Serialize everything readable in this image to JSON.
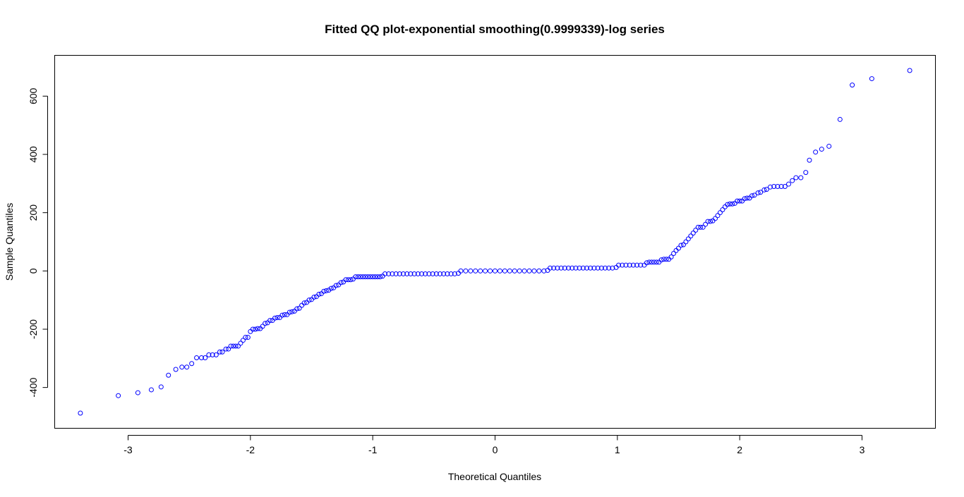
{
  "chart_data": {
    "type": "scatter",
    "title": "Fitted QQ plot-exponential smoothing(0.9999339)-log series",
    "xlabel": "Theoretical Quantiles",
    "ylabel": "Sample Quantiles",
    "xlim": [
      -3.6,
      3.6
    ],
    "ylim": [
      -540,
      740
    ],
    "x_ticks": [
      -3,
      -2,
      -1,
      0,
      1,
      2,
      3
    ],
    "x_tick_labels": [
      "-3",
      "-2",
      "-1",
      "0",
      "1",
      "2",
      "3"
    ],
    "y_ticks": [
      -400,
      -200,
      0,
      200,
      400,
      600
    ],
    "y_tick_labels": [
      "-400",
      "-200",
      "0",
      "200",
      "400",
      "600"
    ],
    "grid": false,
    "point_color": "#0000ff",
    "marker": "open-circle",
    "series": [
      {
        "points": [
          [
            -3.39,
            -488
          ],
          [
            -3.08,
            -428
          ],
          [
            -2.92,
            -418
          ],
          [
            -2.81,
            -408
          ],
          [
            -2.73,
            -398
          ],
          [
            -2.67,
            -358
          ],
          [
            -2.61,
            -338
          ],
          [
            -2.56,
            -330
          ],
          [
            -2.52,
            -330
          ],
          [
            -2.48,
            -318
          ],
          [
            -2.44,
            -298
          ],
          [
            -2.4,
            -298
          ],
          [
            -2.37,
            -298
          ],
          [
            -2.34,
            -288
          ],
          [
            -2.31,
            -288
          ],
          [
            -2.28,
            -288
          ],
          [
            -2.25,
            -278
          ],
          [
            -2.23,
            -278
          ],
          [
            -2.2,
            -268
          ],
          [
            -2.18,
            -268
          ],
          [
            -2.16,
            -258
          ],
          [
            -2.14,
            -258
          ],
          [
            -2.12,
            -258
          ],
          [
            -2.1,
            -258
          ],
          [
            -2.08,
            -248
          ],
          [
            -2.06,
            -238
          ],
          [
            -2.04,
            -228
          ],
          [
            -2.02,
            -228
          ],
          [
            -2.0,
            -208
          ],
          [
            -1.98,
            -200
          ],
          [
            -1.96,
            -200
          ],
          [
            -1.94,
            -198
          ],
          [
            -1.92,
            -198
          ],
          [
            -1.9,
            -190
          ],
          [
            -1.88,
            -180
          ],
          [
            -1.86,
            -178
          ],
          [
            -1.84,
            -170
          ],
          [
            -1.82,
            -170
          ],
          [
            -1.8,
            -162
          ],
          [
            -1.78,
            -160
          ],
          [
            -1.76,
            -160
          ],
          [
            -1.74,
            -152
          ],
          [
            -1.72,
            -150
          ],
          [
            -1.7,
            -150
          ],
          [
            -1.68,
            -142
          ],
          [
            -1.66,
            -140
          ],
          [
            -1.64,
            -138
          ],
          [
            -1.62,
            -130
          ],
          [
            -1.6,
            -128
          ],
          [
            -1.58,
            -118
          ],
          [
            -1.56,
            -110
          ],
          [
            -1.54,
            -108
          ],
          [
            -1.52,
            -100
          ],
          [
            -1.5,
            -98
          ],
          [
            -1.48,
            -90
          ],
          [
            -1.46,
            -88
          ],
          [
            -1.44,
            -80
          ],
          [
            -1.42,
            -78
          ],
          [
            -1.4,
            -70
          ],
          [
            -1.38,
            -68
          ],
          [
            -1.36,
            -66
          ],
          [
            -1.34,
            -60
          ],
          [
            -1.32,
            -58
          ],
          [
            -1.3,
            -50
          ],
          [
            -1.28,
            -48
          ],
          [
            -1.26,
            -40
          ],
          [
            -1.24,
            -38
          ],
          [
            -1.22,
            -30
          ],
          [
            -1.2,
            -30
          ],
          [
            -1.18,
            -30
          ],
          [
            -1.16,
            -28
          ],
          [
            -1.14,
            -20
          ],
          [
            -1.12,
            -20
          ],
          [
            -1.1,
            -20
          ],
          [
            -1.08,
            -20
          ],
          [
            -1.06,
            -20
          ],
          [
            -1.04,
            -20
          ],
          [
            -1.02,
            -20
          ],
          [
            -1.0,
            -20
          ],
          [
            -0.98,
            -20
          ],
          [
            -0.96,
            -20
          ],
          [
            -0.94,
            -20
          ],
          [
            -0.92,
            -18
          ],
          [
            -0.9,
            -10
          ],
          [
            -0.87,
            -10
          ],
          [
            -0.84,
            -10
          ],
          [
            -0.81,
            -10
          ],
          [
            -0.78,
            -10
          ],
          [
            -0.75,
            -10
          ],
          [
            -0.72,
            -10
          ],
          [
            -0.69,
            -10
          ],
          [
            -0.66,
            -10
          ],
          [
            -0.63,
            -10
          ],
          [
            -0.6,
            -10
          ],
          [
            -0.57,
            -10
          ],
          [
            -0.54,
            -10
          ],
          [
            -0.51,
            -10
          ],
          [
            -0.48,
            -10
          ],
          [
            -0.45,
            -10
          ],
          [
            -0.42,
            -10
          ],
          [
            -0.39,
            -10
          ],
          [
            -0.36,
            -10
          ],
          [
            -0.33,
            -10
          ],
          [
            -0.3,
            -8
          ],
          [
            -0.28,
            0
          ],
          [
            -0.24,
            0
          ],
          [
            -0.2,
            0
          ],
          [
            -0.16,
            0
          ],
          [
            -0.12,
            0
          ],
          [
            -0.08,
            0
          ],
          [
            -0.04,
            0
          ],
          [
            0.0,
            0
          ],
          [
            0.04,
            0
          ],
          [
            0.08,
            0
          ],
          [
            0.12,
            0
          ],
          [
            0.16,
            0
          ],
          [
            0.2,
            0
          ],
          [
            0.24,
            0
          ],
          [
            0.28,
            0
          ],
          [
            0.32,
            0
          ],
          [
            0.36,
            0
          ],
          [
            0.4,
            0
          ],
          [
            0.43,
            2
          ],
          [
            0.45,
            10
          ],
          [
            0.48,
            10
          ],
          [
            0.51,
            10
          ],
          [
            0.54,
            10
          ],
          [
            0.57,
            10
          ],
          [
            0.6,
            10
          ],
          [
            0.63,
            10
          ],
          [
            0.66,
            10
          ],
          [
            0.69,
            10
          ],
          [
            0.72,
            10
          ],
          [
            0.75,
            10
          ],
          [
            0.78,
            10
          ],
          [
            0.81,
            10
          ],
          [
            0.84,
            10
          ],
          [
            0.87,
            10
          ],
          [
            0.9,
            10
          ],
          [
            0.93,
            10
          ],
          [
            0.96,
            10
          ],
          [
            0.99,
            12
          ],
          [
            1.01,
            20
          ],
          [
            1.04,
            20
          ],
          [
            1.07,
            20
          ],
          [
            1.1,
            20
          ],
          [
            1.13,
            20
          ],
          [
            1.16,
            20
          ],
          [
            1.19,
            20
          ],
          [
            1.22,
            20
          ],
          [
            1.24,
            28
          ],
          [
            1.26,
            30
          ],
          [
            1.28,
            30
          ],
          [
            1.3,
            30
          ],
          [
            1.32,
            30
          ],
          [
            1.34,
            30
          ],
          [
            1.36,
            38
          ],
          [
            1.38,
            40
          ],
          [
            1.4,
            40
          ],
          [
            1.42,
            40
          ],
          [
            1.44,
            48
          ],
          [
            1.46,
            60
          ],
          [
            1.48,
            70
          ],
          [
            1.5,
            78
          ],
          [
            1.52,
            88
          ],
          [
            1.54,
            90
          ],
          [
            1.56,
            100
          ],
          [
            1.58,
            110
          ],
          [
            1.6,
            120
          ],
          [
            1.62,
            130
          ],
          [
            1.64,
            140
          ],
          [
            1.66,
            150
          ],
          [
            1.68,
            150
          ],
          [
            1.7,
            150
          ],
          [
            1.72,
            160
          ],
          [
            1.74,
            170
          ],
          [
            1.76,
            170
          ],
          [
            1.78,
            172
          ],
          [
            1.8,
            180
          ],
          [
            1.82,
            190
          ],
          [
            1.84,
            200
          ],
          [
            1.86,
            210
          ],
          [
            1.88,
            220
          ],
          [
            1.9,
            228
          ],
          [
            1.92,
            230
          ],
          [
            1.94,
            230
          ],
          [
            1.96,
            232
          ],
          [
            1.98,
            240
          ],
          [
            2.0,
            240
          ],
          [
            2.02,
            240
          ],
          [
            2.04,
            248
          ],
          [
            2.06,
            250
          ],
          [
            2.08,
            250
          ],
          [
            2.1,
            258
          ],
          [
            2.12,
            260
          ],
          [
            2.15,
            268
          ],
          [
            2.17,
            270
          ],
          [
            2.2,
            278
          ],
          [
            2.22,
            280
          ],
          [
            2.25,
            288
          ],
          [
            2.28,
            290
          ],
          [
            2.31,
            290
          ],
          [
            2.34,
            290
          ],
          [
            2.37,
            290
          ],
          [
            2.4,
            298
          ],
          [
            2.43,
            310
          ],
          [
            2.46,
            320
          ],
          [
            2.5,
            320
          ],
          [
            2.54,
            338
          ],
          [
            2.57,
            380
          ],
          [
            2.62,
            408
          ],
          [
            2.67,
            418
          ],
          [
            2.73,
            428
          ],
          [
            2.82,
            520
          ],
          [
            2.92,
            638
          ],
          [
            3.08,
            660
          ],
          [
            3.39,
            688
          ]
        ]
      }
    ]
  }
}
